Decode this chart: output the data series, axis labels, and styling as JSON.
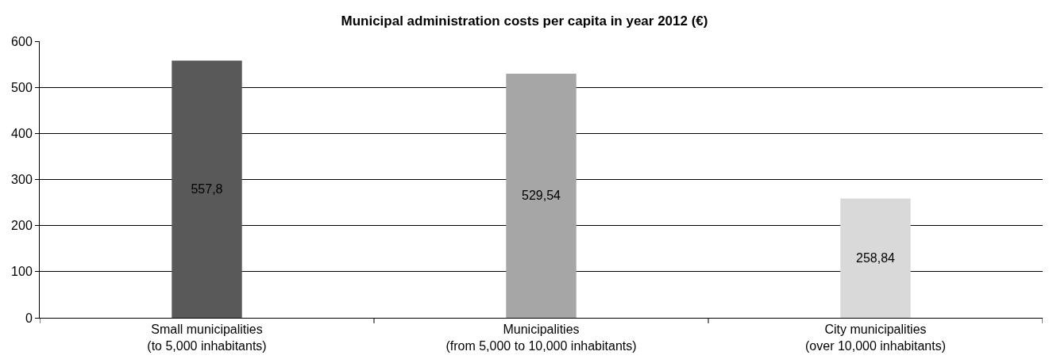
{
  "chart_data": {
    "type": "bar",
    "title": "Municipal administration costs per capita in year 2012 (€)",
    "categories": [
      "Small municipalities\n(to 5,000 inhabitants)",
      "Municipalities\n(from 5,000 to 10,000 inhabitants)",
      "City municipalities\n(over 10,000 inhabitants)"
    ],
    "values": [
      557.8,
      529.54,
      258.84
    ],
    "value_labels": [
      "557,8",
      "529,54",
      "258,84"
    ],
    "colors": [
      "#595959",
      "#a6a6a6",
      "#d9d9d9"
    ],
    "ylim": [
      0,
      600
    ],
    "yticks": [
      0,
      100,
      200,
      300,
      400,
      500,
      600
    ],
    "grid": "y"
  }
}
